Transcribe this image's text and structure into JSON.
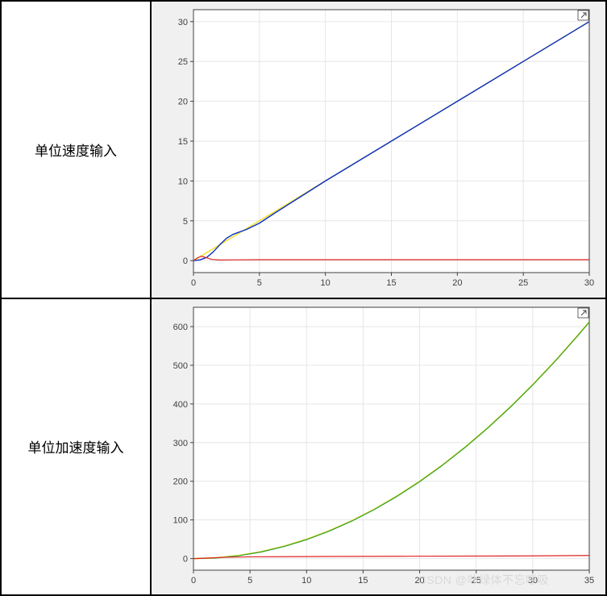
{
  "row1": {
    "label": "单位速度输入",
    "chart": {
      "type": "line",
      "background_color": "#f0f0f0",
      "plot_background": "#ffffff",
      "grid_color": "#e6e6e6",
      "axis_color": "#404040",
      "tick_font_size": 11,
      "tick_color": "#404040",
      "xlim": [
        0,
        30
      ],
      "ylim": [
        -1.5,
        31.5
      ],
      "xticks": [
        0,
        5,
        10,
        15,
        20,
        25,
        30
      ],
      "yticks": [
        0,
        5,
        10,
        15,
        20,
        25,
        30
      ],
      "series": [
        {
          "name": "yellow-ramp",
          "color": "#f2e33a",
          "width": 1.6,
          "x": [
            0,
            30
          ],
          "y": [
            0,
            30
          ]
        },
        {
          "name": "blue-response",
          "color": "#0a2ec9",
          "width": 1.4,
          "x": [
            0,
            0.5,
            1,
            1.5,
            2,
            2.5,
            3,
            4,
            5,
            6,
            8,
            10,
            12,
            15,
            20,
            25,
            30
          ],
          "y": [
            0,
            0.1,
            0.4,
            1.1,
            2.0,
            2.8,
            3.3,
            3.9,
            4.7,
            5.8,
            7.9,
            10.0,
            12.0,
            15.0,
            20.0,
            25.0,
            30.0
          ]
        },
        {
          "name": "red-error",
          "color": "#e02424",
          "width": 1.2,
          "x": [
            0,
            0.3,
            0.6,
            1,
            1.4,
            2,
            3,
            5,
            10,
            15,
            20,
            25,
            30
          ],
          "y": [
            0,
            0.35,
            0.55,
            0.35,
            0.15,
            0.08,
            0.1,
            0.12,
            0.12,
            0.12,
            0.12,
            0.12,
            0.12
          ]
        }
      ]
    }
  },
  "row2": {
    "label": "单位加速度输入",
    "chart": {
      "type": "line",
      "background_color": "#f0f0f0",
      "plot_background": "#ffffff",
      "grid_color": "#e6e6e6",
      "axis_color": "#404040",
      "tick_font_size": 11,
      "tick_color": "#404040",
      "xlim": [
        0,
        35
      ],
      "ylim": [
        -30,
        650
      ],
      "xticks": [
        0,
        5,
        10,
        15,
        20,
        25,
        30,
        35
      ],
      "yticks": [
        0,
        100,
        200,
        300,
        400,
        500,
        600
      ],
      "series": [
        {
          "name": "yellow-parabola",
          "color": "#f2e33a",
          "width": 1.8,
          "x": [
            0,
            2,
            4,
            6,
            8,
            10,
            12,
            14,
            16,
            18,
            20,
            22,
            24,
            26,
            28,
            30,
            32,
            34,
            35
          ],
          "y": [
            0,
            2,
            8,
            18,
            32,
            50,
            72,
            98,
            128,
            162,
            200,
            242,
            288,
            338,
            392,
            450,
            512,
            578,
            612.5
          ]
        },
        {
          "name": "green-response",
          "color": "#2e9e2e",
          "width": 1.2,
          "x": [
            0,
            2,
            4,
            6,
            8,
            10,
            12,
            14,
            16,
            18,
            20,
            22,
            24,
            26,
            28,
            30,
            32,
            34,
            35
          ],
          "y": [
            0,
            1.5,
            7.4,
            17.2,
            31.1,
            49.0,
            71.0,
            97.0,
            127.0,
            161.0,
            199.0,
            241.0,
            287.0,
            337.0,
            391.0,
            449.0,
            511.0,
            577.0,
            611.4
          ]
        },
        {
          "name": "red-error",
          "color": "#e02424",
          "width": 1.2,
          "x": [
            0,
            1,
            2,
            3,
            5,
            8,
            12,
            18,
            25,
            30,
            35
          ],
          "y": [
            0,
            1,
            2.5,
            3.5,
            4.5,
            5,
            5.5,
            6,
            6.5,
            7,
            8
          ]
        }
      ]
    }
  },
  "watermark": "CSDN @叶绿体不忘呼吸"
}
